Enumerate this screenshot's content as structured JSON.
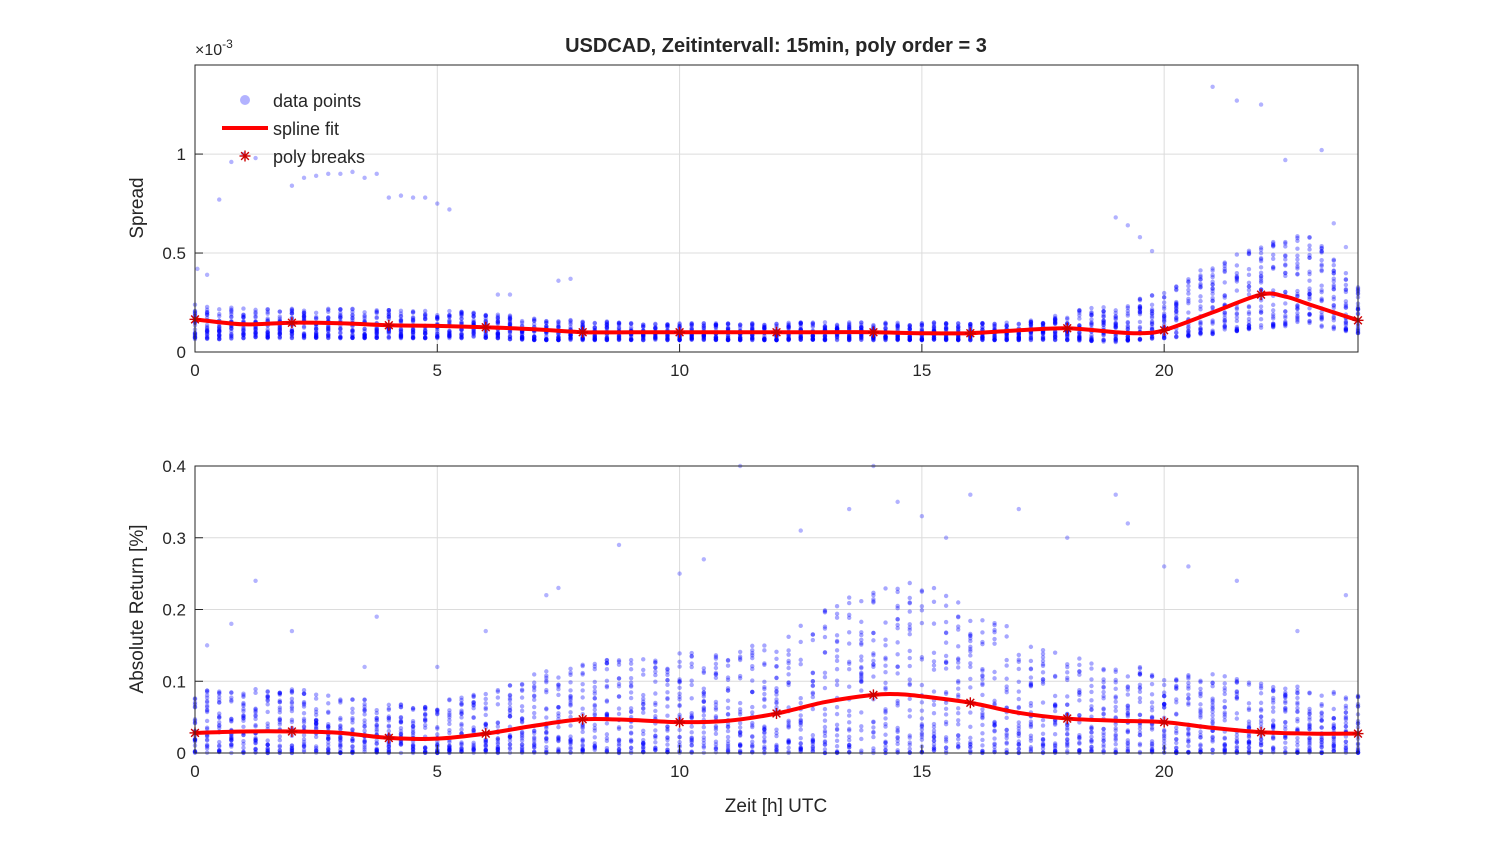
{
  "figure": {
    "title": "USDCAD, Zeitintervall: 15min, poly order = 3",
    "colors": {
      "points": "#0000ff",
      "fit": "#ff0000",
      "breaks": "#cc0000",
      "grid": "#dcdcdc",
      "axis": "#262626"
    }
  },
  "legend": {
    "placement": "top-left of upper plot",
    "items": [
      {
        "label": "data points",
        "marker": "circle"
      },
      {
        "label": "spline fit",
        "marker": "line"
      },
      {
        "label": "poly breaks",
        "marker": "asterisk"
      }
    ]
  },
  "chart_data": [
    {
      "type": "scatter",
      "title": "USDCAD, Zeitintervall: 15min, poly order = 3",
      "xlabel": "",
      "ylabel": "Spread",
      "y_exponent_label": "×10",
      "y_exponent_power": "-3",
      "xlim": [
        0,
        24
      ],
      "ylim": [
        0,
        1.45
      ],
      "xticks": [
        0,
        5,
        10,
        15,
        20
      ],
      "yticks": [
        0,
        0.5,
        1
      ],
      "ytick_labels": [
        "0",
        "0.5",
        "1"
      ],
      "grid": true,
      "fit_x": [
        0,
        1,
        2,
        3,
        4,
        5,
        6,
        7,
        8,
        9,
        10,
        11,
        12,
        13,
        14,
        15,
        16,
        17,
        18,
        19,
        19.5,
        20,
        21,
        22,
        22.5,
        23,
        24
      ],
      "fit_y": [
        0.165,
        0.14,
        0.148,
        0.145,
        0.135,
        0.132,
        0.125,
        0.115,
        0.1,
        0.1,
        0.1,
        0.1,
        0.1,
        0.1,
        0.1,
        0.095,
        0.095,
        0.11,
        0.12,
        0.1,
        0.095,
        0.11,
        0.2,
        0.29,
        0.28,
        0.24,
        0.16
      ],
      "breaks_x": [
        0,
        2,
        4,
        6,
        8,
        10,
        12,
        14,
        16,
        18,
        20,
        22,
        24
      ],
      "breaks_y": [
        0.165,
        0.148,
        0.135,
        0.125,
        0.1,
        0.1,
        0.1,
        0.1,
        0.095,
        0.12,
        0.11,
        0.29,
        0.16
      ],
      "points": {
        "bin_width_h": 0.25,
        "band_low": [
          0.06,
          0.07,
          0.07,
          0.07,
          0.07,
          0.07,
          0.07,
          0.06,
          0.06,
          0.06,
          0.06,
          0.06,
          0.06,
          0.06,
          0.06,
          0.06,
          0.06,
          0.06,
          0.06,
          0.05,
          0.07,
          0.09,
          0.12,
          0.14,
          0.09
        ],
        "band_high": [
          0.24,
          0.22,
          0.22,
          0.22,
          0.22,
          0.21,
          0.2,
          0.18,
          0.16,
          0.15,
          0.15,
          0.15,
          0.15,
          0.15,
          0.15,
          0.15,
          0.15,
          0.15,
          0.2,
          0.25,
          0.3,
          0.45,
          0.55,
          0.6,
          0.35
        ],
        "outliers": [
          [
            0.05,
            0.42
          ],
          [
            0.25,
            0.39
          ],
          [
            0.5,
            0.77
          ],
          [
            0.75,
            0.96
          ],
          [
            1.0,
            1.0
          ],
          [
            1.25,
            0.98
          ],
          [
            2.0,
            0.84
          ],
          [
            2.25,
            0.88
          ],
          [
            2.5,
            0.89
          ],
          [
            2.75,
            0.9
          ],
          [
            3.0,
            0.9
          ],
          [
            3.25,
            0.91
          ],
          [
            3.5,
            0.88
          ],
          [
            3.75,
            0.9
          ],
          [
            4.0,
            0.78
          ],
          [
            4.25,
            0.79
          ],
          [
            4.5,
            0.78
          ],
          [
            4.75,
            0.78
          ],
          [
            5.0,
            0.75
          ],
          [
            5.25,
            0.72
          ],
          [
            6.25,
            0.29
          ],
          [
            6.5,
            0.29
          ],
          [
            7.5,
            0.36
          ],
          [
            7.75,
            0.37
          ],
          [
            19.0,
            0.68
          ],
          [
            19.25,
            0.64
          ],
          [
            19.5,
            0.58
          ],
          [
            19.75,
            0.51
          ],
          [
            21.0,
            1.34
          ],
          [
            21.5,
            1.27
          ],
          [
            22.0,
            1.25
          ],
          [
            22.5,
            0.97
          ],
          [
            23.25,
            1.02
          ],
          [
            23.5,
            0.65
          ],
          [
            23.75,
            0.53
          ]
        ]
      }
    },
    {
      "type": "scatter",
      "title": "",
      "xlabel": "Zeit [h] UTC",
      "ylabel": "Absolute Return [%]",
      "xlim": [
        0,
        24
      ],
      "ylim": [
        0,
        0.4
      ],
      "xticks": [
        0,
        5,
        10,
        15,
        20
      ],
      "yticks": [
        0,
        0.1,
        0.2,
        0.3,
        0.4
      ],
      "ytick_labels": [
        "0",
        "0.1",
        "0.2",
        "0.3",
        "0.4"
      ],
      "grid": true,
      "fit_x": [
        0,
        1,
        2,
        3,
        4,
        5,
        6,
        7,
        8,
        9,
        10,
        11,
        12,
        13,
        14,
        14.5,
        15,
        16,
        17,
        18,
        19,
        20,
        21,
        22,
        23,
        24
      ],
      "fit_y": [
        0.028,
        0.03,
        0.03,
        0.028,
        0.021,
        0.02,
        0.027,
        0.038,
        0.047,
        0.046,
        0.043,
        0.045,
        0.055,
        0.071,
        0.081,
        0.082,
        0.079,
        0.07,
        0.056,
        0.048,
        0.045,
        0.043,
        0.035,
        0.029,
        0.027,
        0.027
      ],
      "breaks_x": [
        0,
        2,
        4,
        6,
        8,
        10,
        12,
        14,
        16,
        18,
        20,
        22,
        24
      ],
      "breaks_y": [
        0.028,
        0.03,
        0.021,
        0.027,
        0.047,
        0.043,
        0.055,
        0.081,
        0.07,
        0.048,
        0.043,
        0.029,
        0.027
      ],
      "points": {
        "bin_width_h": 0.25,
        "band_high": [
          0.09,
          0.09,
          0.09,
          0.08,
          0.07,
          0.07,
          0.09,
          0.11,
          0.13,
          0.13,
          0.14,
          0.14,
          0.17,
          0.2,
          0.24,
          0.24,
          0.2,
          0.17,
          0.14,
          0.12,
          0.12,
          0.11,
          0.1,
          0.09,
          0.08
        ],
        "outliers": [
          [
            0.25,
            0.15
          ],
          [
            0.75,
            0.18
          ],
          [
            1.25,
            0.24
          ],
          [
            2.0,
            0.17
          ],
          [
            3.5,
            0.12
          ],
          [
            3.75,
            0.19
          ],
          [
            5.0,
            0.12
          ],
          [
            6.0,
            0.17
          ],
          [
            7.25,
            0.22
          ],
          [
            7.5,
            0.23
          ],
          [
            8.75,
            0.29
          ],
          [
            10.0,
            0.25
          ],
          [
            10.5,
            0.27
          ],
          [
            11.25,
            0.4
          ],
          [
            12.5,
            0.31
          ],
          [
            13.5,
            0.34
          ],
          [
            14.0,
            0.4
          ],
          [
            14.5,
            0.35
          ],
          [
            15.0,
            0.33
          ],
          [
            15.5,
            0.3
          ],
          [
            16.0,
            0.36
          ],
          [
            17.0,
            0.34
          ],
          [
            18.0,
            0.3
          ],
          [
            19.0,
            0.36
          ],
          [
            19.25,
            0.32
          ],
          [
            20.0,
            0.26
          ],
          [
            20.5,
            0.26
          ],
          [
            21.5,
            0.24
          ],
          [
            22.75,
            0.17
          ],
          [
            23.75,
            0.22
          ]
        ]
      }
    }
  ]
}
